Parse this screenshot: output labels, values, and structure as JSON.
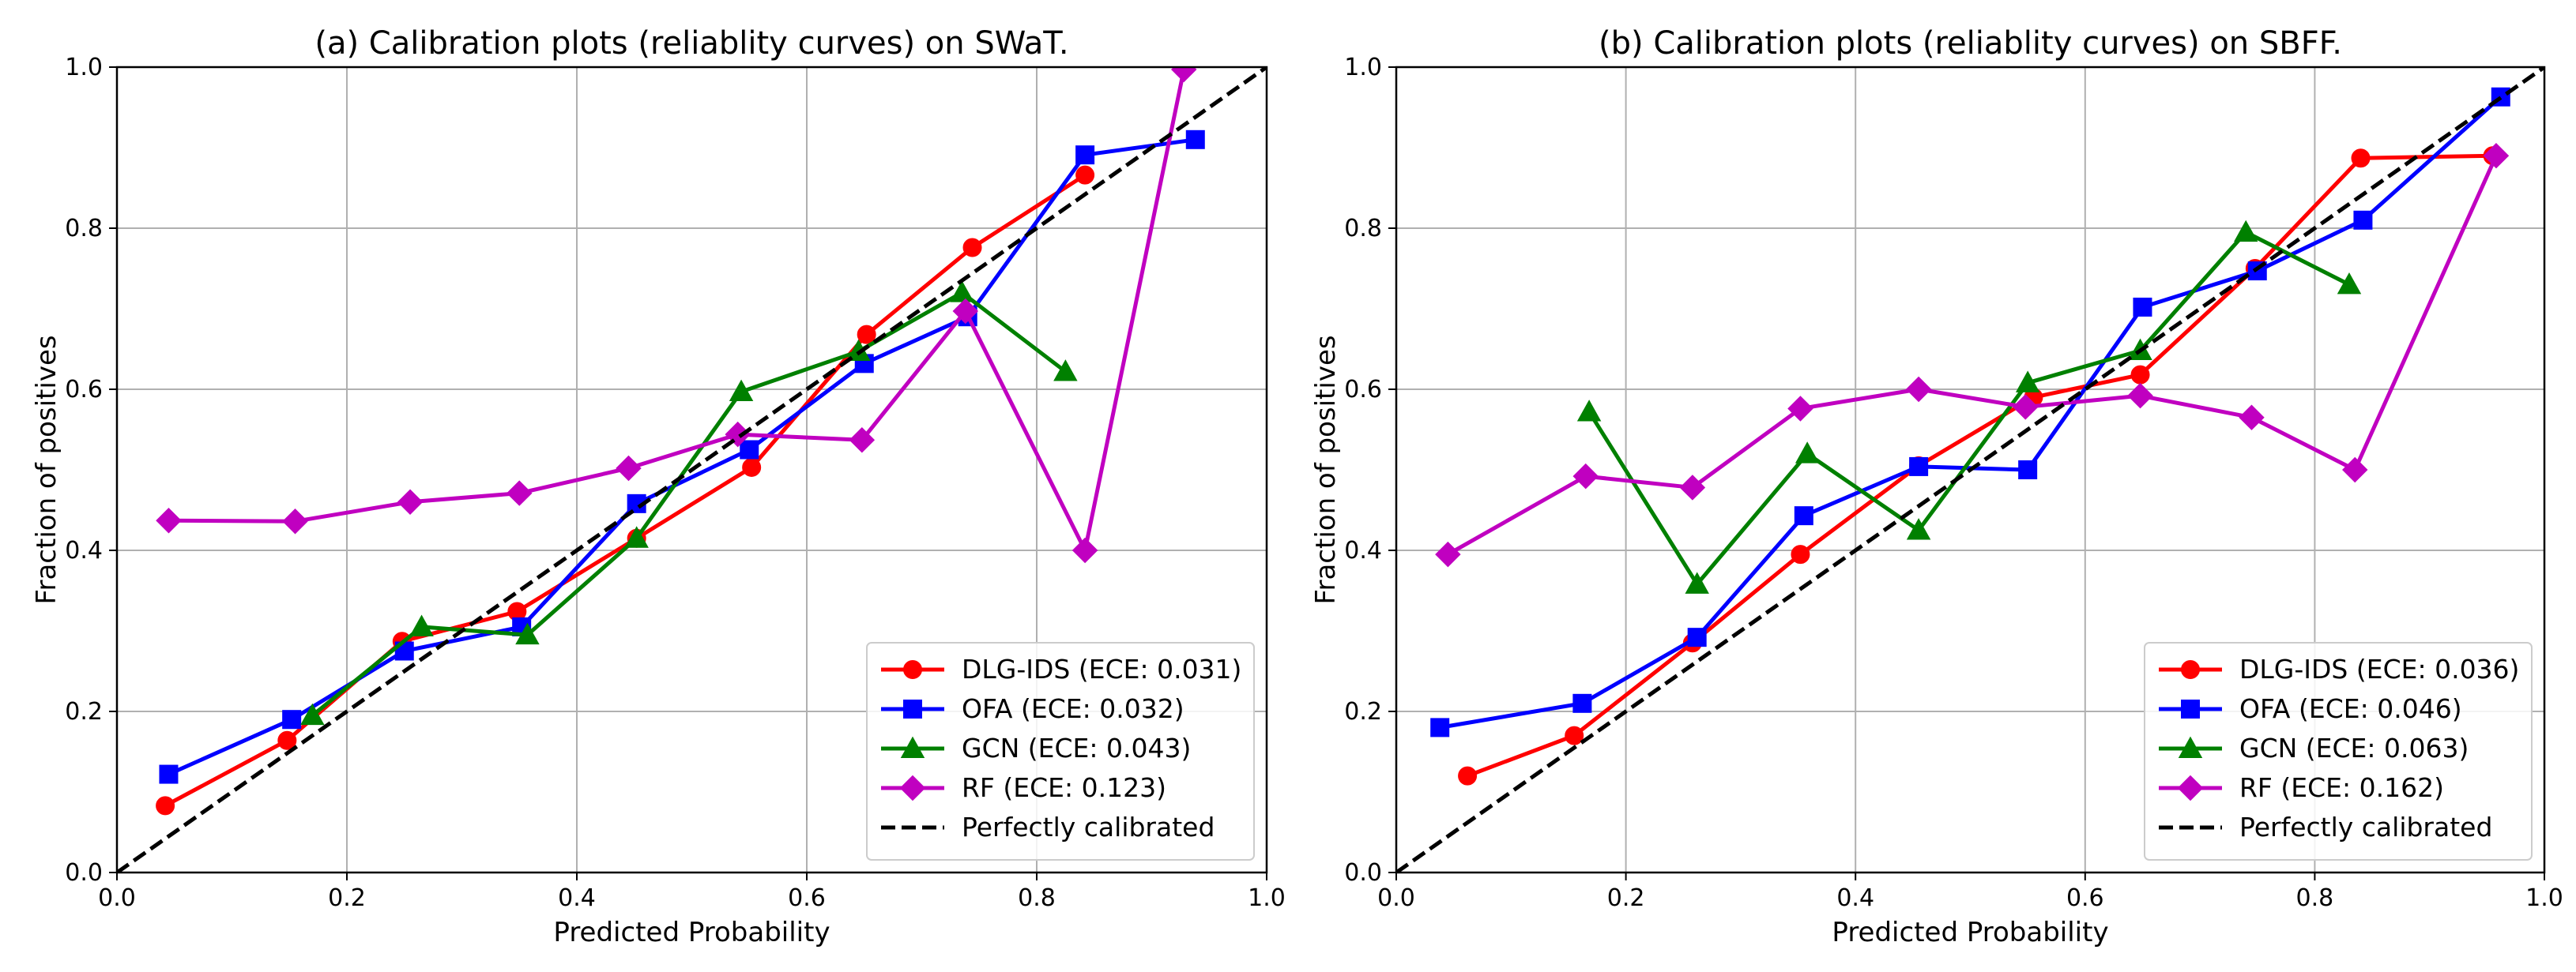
{
  "figure": {
    "colors": {
      "DLG-IDS": "#ff0000",
      "OFA": "#0000ff",
      "GCN": "#008000",
      "RF": "#c000c0",
      "perfect": "#000000",
      "grid": "#b0b0b0"
    }
  },
  "chart_data": [
    {
      "type": "line",
      "title": "(a) Calibration plots (reliablity curves) on SWaT.",
      "xlabel": "Predicted Probability",
      "ylabel": "Fraction of positives",
      "xlim": [
        0.0,
        1.0
      ],
      "ylim": [
        0.0,
        1.0
      ],
      "xticks": [
        "0.0",
        "0.2",
        "0.4",
        "0.6",
        "0.8",
        "1.0"
      ],
      "yticks": [
        "0.0",
        "0.2",
        "0.4",
        "0.6",
        "0.8",
        "1.0"
      ],
      "grid": true,
      "legend_position": "bottom-right",
      "series": [
        {
          "name": "DLG-IDS (ECE: 0.031)",
          "key": "DLG-IDS",
          "marker": "circle",
          "x": [
            0.042,
            0.148,
            0.248,
            0.348,
            0.452,
            0.552,
            0.652,
            0.744,
            0.842
          ],
          "y": [
            0.083,
            0.164,
            0.287,
            0.324,
            0.415,
            0.503,
            0.668,
            0.776,
            0.866
          ]
        },
        {
          "name": "OFA (ECE: 0.032)",
          "key": "OFA",
          "marker": "square",
          "x": [
            0.045,
            0.152,
            0.25,
            0.352,
            0.452,
            0.55,
            0.65,
            0.74,
            0.842,
            0.938
          ],
          "y": [
            0.122,
            0.19,
            0.275,
            0.305,
            0.458,
            0.525,
            0.632,
            0.69,
            0.891,
            0.91
          ]
        },
        {
          "name": "GCN (ECE: 0.043)",
          "key": "GCN",
          "marker": "triangle",
          "x": [
            0.17,
            0.265,
            0.357,
            0.452,
            0.543,
            0.645,
            0.735,
            0.825
          ],
          "y": [
            0.195,
            0.305,
            0.295,
            0.415,
            0.597,
            0.647,
            0.72,
            0.622
          ]
        },
        {
          "name": "RF (ECE: 0.123)",
          "key": "RF",
          "marker": "diamond",
          "x": [
            0.045,
            0.155,
            0.255,
            0.35,
            0.445,
            0.54,
            0.648,
            0.738,
            0.842,
            0.928
          ],
          "y": [
            0.437,
            0.436,
            0.46,
            0.471,
            0.502,
            0.544,
            0.537,
            0.697,
            0.4,
            0.997
          ]
        },
        {
          "name": "Perfectly calibrated",
          "key": "perfect",
          "marker": "none",
          "dashed": true,
          "x": [
            0.0,
            1.0
          ],
          "y": [
            0.0,
            1.0
          ]
        }
      ]
    },
    {
      "type": "line",
      "title": "(b) Calibration plots (reliablity curves) on SBFF.",
      "xlabel": "Predicted Probability",
      "ylabel": "Fraction of positives",
      "xlim": [
        0.0,
        1.0
      ],
      "ylim": [
        0.0,
        1.0
      ],
      "xticks": [
        "0.0",
        "0.2",
        "0.4",
        "0.6",
        "0.8",
        "1.0"
      ],
      "yticks": [
        "0.0",
        "0.2",
        "0.4",
        "0.6",
        "0.8",
        "1.0"
      ],
      "grid": true,
      "legend_position": "bottom-right",
      "series": [
        {
          "name": "DLG-IDS (ECE: 0.036)",
          "key": "DLG-IDS",
          "marker": "circle",
          "x": [
            0.062,
            0.155,
            0.258,
            0.352,
            0.455,
            0.555,
            0.648,
            0.748,
            0.84,
            0.955
          ],
          "y": [
            0.12,
            0.17,
            0.285,
            0.395,
            0.505,
            0.59,
            0.618,
            0.75,
            0.887,
            0.89
          ]
        },
        {
          "name": "OFA (ECE: 0.046)",
          "key": "OFA",
          "marker": "square",
          "x": [
            0.038,
            0.162,
            0.262,
            0.355,
            0.455,
            0.55,
            0.65,
            0.75,
            0.842,
            0.962
          ],
          "y": [
            0.18,
            0.21,
            0.292,
            0.443,
            0.504,
            0.5,
            0.702,
            0.747,
            0.81,
            0.963
          ]
        },
        {
          "name": "GCN (ECE: 0.063)",
          "key": "GCN",
          "marker": "triangle",
          "x": [
            0.168,
            0.262,
            0.358,
            0.455,
            0.55,
            0.648,
            0.74,
            0.83
          ],
          "y": [
            0.572,
            0.358,
            0.52,
            0.425,
            0.608,
            0.648,
            0.795,
            0.73
          ]
        },
        {
          "name": "RF (ECE: 0.162)",
          "key": "RF",
          "marker": "diamond",
          "x": [
            0.045,
            0.165,
            0.258,
            0.352,
            0.455,
            0.548,
            0.648,
            0.745,
            0.835,
            0.958
          ],
          "y": [
            0.395,
            0.492,
            0.478,
            0.576,
            0.6,
            0.578,
            0.592,
            0.565,
            0.5,
            0.89
          ]
        },
        {
          "name": "Perfectly calibrated",
          "key": "perfect",
          "marker": "none",
          "dashed": true,
          "x": [
            0.0,
            1.0
          ],
          "y": [
            0.0,
            1.0
          ]
        }
      ]
    }
  ]
}
